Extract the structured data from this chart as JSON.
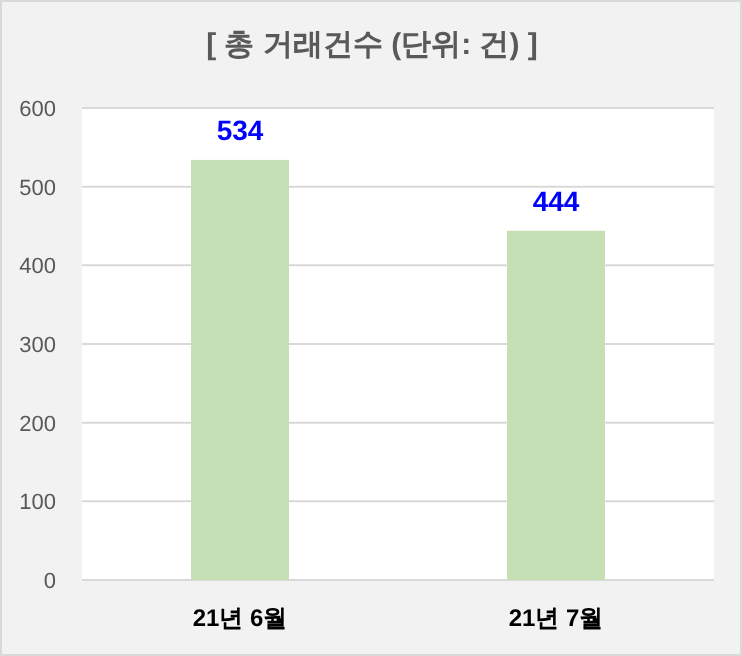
{
  "chart_data": {
    "type": "bar",
    "title": "[ 총 거래건수 (단위: 건) ]",
    "categories": [
      "21년 6월",
      "21년 7월"
    ],
    "values": [
      534,
      444
    ],
    "color": "#c5e0b4",
    "ylim": [
      0,
      600
    ],
    "yticks": [
      0,
      100,
      200,
      300,
      400,
      500,
      600
    ],
    "grid": "y",
    "data_labels": true
  }
}
